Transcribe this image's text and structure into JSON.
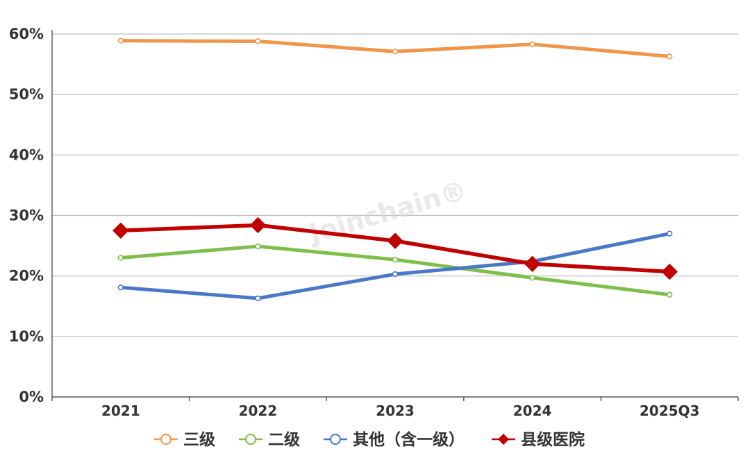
{
  "chart_data": {
    "type": "line",
    "title": "",
    "xlabel": "",
    "ylabel": "",
    "categories": [
      "2021",
      "2022",
      "2023",
      "2024",
      "2025Q3"
    ],
    "ylim": [
      0,
      60
    ],
    "yticks": [
      "0%",
      "10%",
      "20%",
      "30%",
      "40%",
      "50%",
      "60%"
    ],
    "grid": true,
    "legend_position": "bottom",
    "watermark": "Joinchain®",
    "series": [
      {
        "name": "三级",
        "values": [
          58.9,
          58.8,
          57.1,
          58.3,
          56.3
        ],
        "color": "#F0954A",
        "marker": "circle"
      },
      {
        "name": "二级",
        "values": [
          23.0,
          24.9,
          22.7,
          19.7,
          16.9
        ],
        "color": "#7DBF4A",
        "marker": "circle"
      },
      {
        "name": "其他（含一级）",
        "values": [
          18.1,
          16.3,
          20.3,
          22.4,
          27.0
        ],
        "color": "#4A78C8",
        "marker": "circle"
      },
      {
        "name": "县级医院",
        "values": [
          27.5,
          28.4,
          25.8,
          22.0,
          20.7
        ],
        "color": "#C00000",
        "marker": "diamond"
      }
    ]
  }
}
